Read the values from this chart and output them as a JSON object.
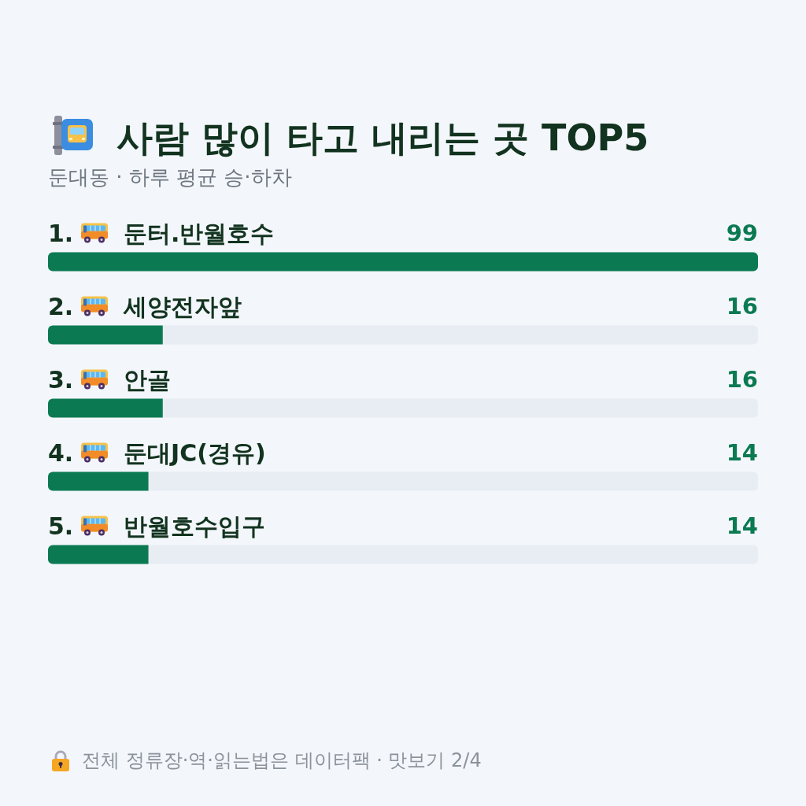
{
  "chart_data": {
    "type": "bar",
    "orientation": "horizontal",
    "title": "사람 많이 타고 내리는 곳 TOP5",
    "subtitle": "둔대동 · 하루 평균 승·하차",
    "categories": [
      "1. 둔터.반월호수",
      "2. 세양전자앞",
      "3. 안골",
      "4. 둔대JC(경유)",
      "5. 반월호수입구"
    ],
    "values": [
      99,
      16,
      16,
      14,
      14
    ],
    "color": "#0b7a52",
    "data_labels": true,
    "tick_labels": "y",
    "annotations": [
      "전체 정류장·역·읽는법은 데이터팩 · 맛보기 2/4"
    ]
  }
}
